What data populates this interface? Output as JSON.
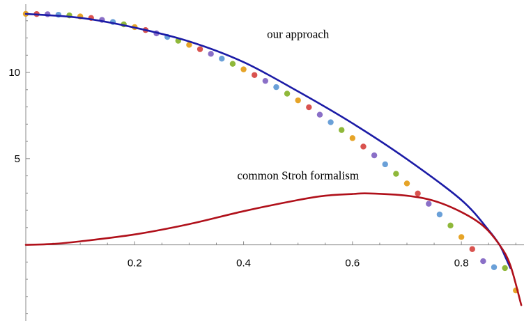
{
  "chart_data": {
    "type": "line",
    "title": "",
    "xlabel": "",
    "ylabel": "",
    "xlim": [
      0,
      0.915
    ],
    "ylim": [
      -4.3,
      13.8
    ],
    "grid": false,
    "legend": "none",
    "x_ticks": [
      0.2,
      0.4,
      0.6,
      0.8
    ],
    "x_tick_labels": [
      "0.2",
      "0.4",
      "0.6",
      "0.8"
    ],
    "y_ticks": [
      5,
      10
    ],
    "y_tick_labels": [
      "5",
      "10"
    ],
    "annotations": [
      {
        "text": "our approach",
        "x": 0.5,
        "y": 12.0
      },
      {
        "text": "common Stroh formalism",
        "x": 0.5,
        "y": 3.8
      }
    ],
    "series": [
      {
        "color": "#1b1ba6",
        "style": "line",
        "x": [
          0,
          0.1,
          0.2,
          0.3,
          0.4,
          0.5,
          0.6,
          0.7,
          0.8,
          0.85,
          0.87,
          0.88,
          0.89
        ],
        "y": [
          13.4,
          13.17,
          12.6,
          11.8,
          10.6,
          8.9,
          7.05,
          4.97,
          2.6,
          0.85,
          0.0,
          -0.65,
          -1.35
        ]
      },
      {
        "color": "#b0101a",
        "style": "line",
        "x": [
          0,
          0.05,
          0.1,
          0.2,
          0.3,
          0.4,
          0.5,
          0.55,
          0.6,
          0.63,
          0.7,
          0.75,
          0.8,
          0.84,
          0.87,
          0.89,
          0.91
        ],
        "y": [
          0,
          0.05,
          0.2,
          0.6,
          1.2,
          1.95,
          2.6,
          2.85,
          2.95,
          2.98,
          2.85,
          2.55,
          1.9,
          1.1,
          0.0,
          -1.2,
          -3.5
        ]
      },
      {
        "style": "points",
        "colors": [
          "#e6a428",
          "#d9534f",
          "#8a6fc7",
          "#6aa0d8",
          "#8fb83a"
        ],
        "x": [
          0,
          0.02,
          0.04,
          0.06,
          0.08,
          0.1,
          0.12,
          0.14,
          0.16,
          0.18,
          0.2,
          0.22,
          0.24,
          0.26,
          0.28,
          0.3,
          0.32,
          0.34,
          0.36,
          0.38,
          0.4,
          0.42,
          0.44,
          0.46,
          0.48,
          0.5,
          0.52,
          0.54,
          0.56,
          0.58,
          0.6,
          0.62,
          0.64,
          0.66,
          0.68,
          0.7,
          0.72,
          0.74,
          0.76,
          0.78,
          0.8,
          0.82,
          0.84,
          0.86,
          0.88,
          0.9
        ],
        "y": [
          13.4,
          13.39,
          13.38,
          13.35,
          13.31,
          13.25,
          13.16,
          13.05,
          12.93,
          12.79,
          12.63,
          12.46,
          12.27,
          12.06,
          11.84,
          11.6,
          11.35,
          11.08,
          10.8,
          10.5,
          10.18,
          9.85,
          9.51,
          9.15,
          8.77,
          8.38,
          7.98,
          7.55,
          7.11,
          6.66,
          6.19,
          5.7,
          5.19,
          4.67,
          4.12,
          3.56,
          2.98,
          2.38,
          1.76,
          1.12,
          0.45,
          -0.25,
          -0.95,
          -1.3,
          -1.35,
          -2.65
        ]
      }
    ]
  }
}
